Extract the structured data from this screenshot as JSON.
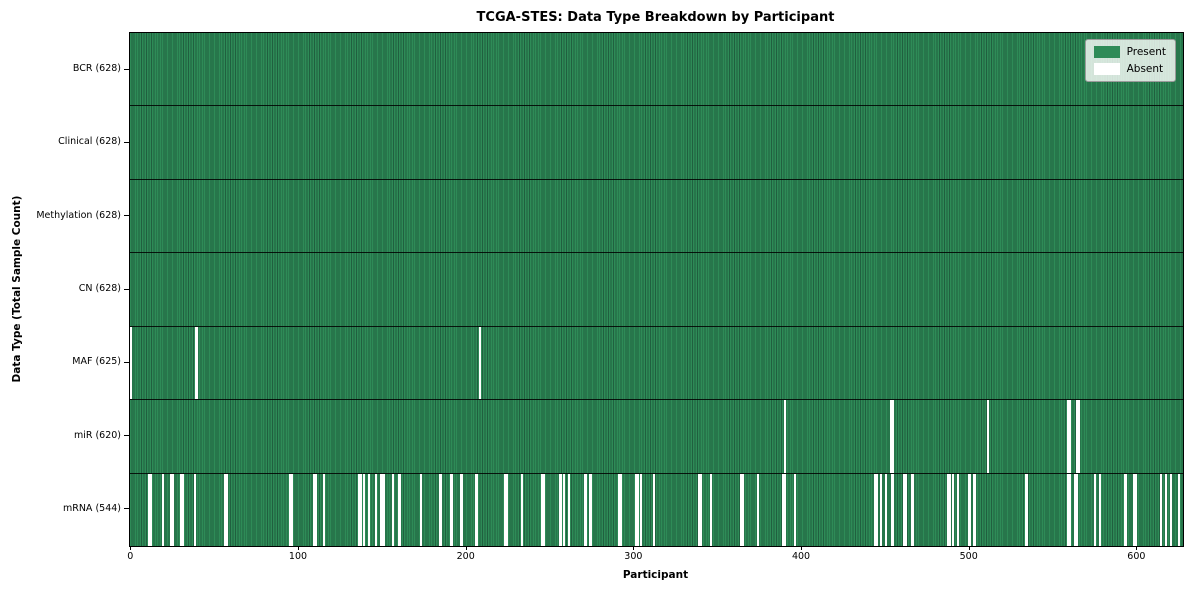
{
  "colors": {
    "present": "#2e8b57",
    "present_edge": "#20603f",
    "absent": "#ffffff",
    "spine": "#000000",
    "legend_border": "#9b9b9b"
  },
  "legend": {
    "items": [
      {
        "label": "Present",
        "color": "#2e8b57",
        "border": "none"
      },
      {
        "label": "Absent",
        "color": "#ffffff",
        "border": "none"
      }
    ]
  },
  "axis": {
    "x_ticks": [
      0,
      100,
      200,
      300,
      400,
      500,
      600
    ]
  },
  "chart_data": {
    "type": "heatmap",
    "title": "TCGA-STES: Data Type Breakdown by Participant",
    "xlabel": "Participant",
    "ylabel": "Data Type (Total Sample Count)",
    "x_range": [
      0,
      628
    ],
    "grid": false,
    "legend_position": "upper right",
    "legend_entries": [
      "Present",
      "Absent"
    ],
    "categories": [
      "BCR (628)",
      "Clinical (628)",
      "Methylation (628)",
      "CN (628)",
      "MAF (625)",
      "miR (620)",
      "mRNA (544)"
    ],
    "rows": [
      {
        "label": "BCR (628)",
        "data_type": "BCR",
        "present_count": 628,
        "absent_count": 0,
        "absent_participants": []
      },
      {
        "label": "Clinical (628)",
        "data_type": "Clinical",
        "present_count": 628,
        "absent_count": 0,
        "absent_participants": []
      },
      {
        "label": "Methylation (628)",
        "data_type": "Methylation",
        "present_count": 628,
        "absent_count": 0,
        "absent_participants": []
      },
      {
        "label": "CN (628)",
        "data_type": "CN",
        "present_count": 628,
        "absent_count": 0,
        "absent_participants": []
      },
      {
        "label": "MAF (625)",
        "data_type": "MAF",
        "present_count": 625,
        "absent_count": 3,
        "absent_participants": [
          0,
          39,
          208
        ]
      },
      {
        "label": "miR (620)",
        "data_type": "miR",
        "present_count": 620,
        "absent_count": 8,
        "absent_participants": [
          390,
          453,
          454,
          511,
          559,
          560,
          564,
          565
        ]
      },
      {
        "label": "mRNA (544)",
        "data_type": "mRNA",
        "present_count": 544,
        "absent_count": 84,
        "absent_participants": [
          11,
          12,
          19,
          24,
          25,
          30,
          31,
          38,
          56,
          57,
          95,
          96,
          109,
          110,
          115,
          136,
          137,
          139,
          142,
          146,
          149,
          150,
          151,
          156,
          160,
          173,
          184,
          185,
          191,
          197,
          206,
          223,
          224,
          233,
          245,
          246,
          256,
          258,
          261,
          271,
          274,
          291,
          292,
          301,
          302,
          304,
          312,
          339,
          340,
          346,
          364,
          365,
          374,
          389,
          390,
          396,
          444,
          445,
          447,
          450,
          454,
          461,
          462,
          466,
          487,
          488,
          490,
          493,
          500,
          503,
          534,
          559,
          560,
          563,
          564,
          575,
          578,
          593,
          598,
          599,
          614,
          617,
          620,
          625
        ]
      }
    ]
  }
}
